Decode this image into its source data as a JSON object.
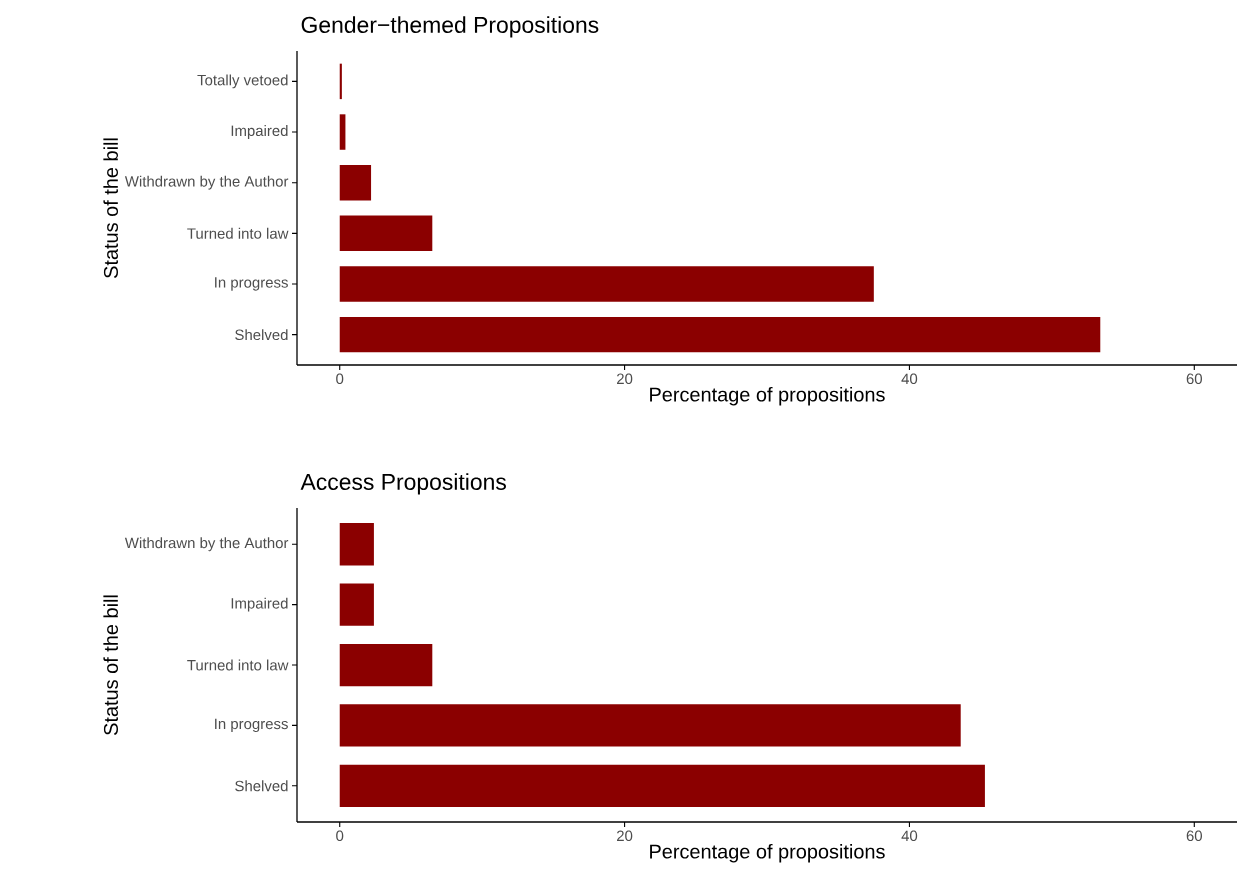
{
  "chart_data": [
    {
      "type": "bar",
      "orientation": "horizontal",
      "title": "Gender−themed Propositions",
      "xlabel": "Percentage of propositions",
      "ylabel": "Status of the bill",
      "categories": [
        "Totally vetoed",
        "Impaired",
        "Withdrawn by the Author",
        "Turned into law",
        "In progress",
        "Shelved"
      ],
      "values": [
        0.15,
        0.4,
        2.2,
        6.5,
        37.5,
        53.4
      ],
      "color": "#8b0000",
      "xlim": [
        -3,
        63
      ],
      "xticks": [
        0,
        20,
        40,
        60
      ]
    },
    {
      "type": "bar",
      "orientation": "horizontal",
      "title": "Access Propositions",
      "xlabel": "Percentage of propositions",
      "ylabel": "Status of the bill",
      "categories": [
        "Withdrawn by the Author",
        "Impaired",
        "Turned into law",
        "In progress",
        "Shelved"
      ],
      "values": [
        2.4,
        2.4,
        6.5,
        43.6,
        45.3
      ],
      "color": "#8b0000",
      "xlim": [
        -3,
        63
      ],
      "xticks": [
        0,
        20,
        40,
        60
      ]
    }
  ]
}
